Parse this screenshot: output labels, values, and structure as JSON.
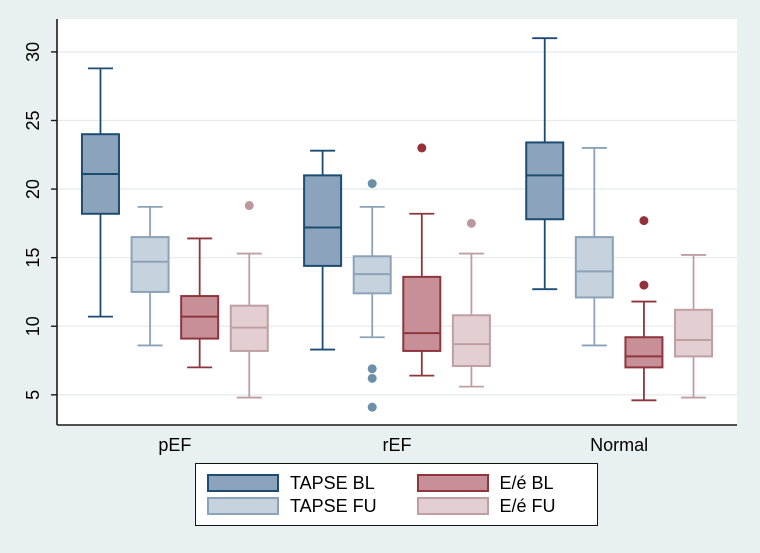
{
  "figure": {
    "background": "#e9f0f2",
    "plot_background": "#ffffff"
  },
  "chart_data": {
    "type": "box",
    "title": "",
    "xlabel": "",
    "ylabel": "",
    "groups": [
      "pEF",
      "rEF",
      "Normal"
    ],
    "yticks": [
      5,
      10,
      15,
      20,
      25,
      30
    ],
    "ylim": [
      2.8,
      32.4
    ],
    "grid": true,
    "legend_position": "bottom",
    "colors": {
      "grid": "#e7ebee",
      "axis": "#1a1a1a",
      "text": "#000000"
    },
    "series": [
      {
        "name": "TAPSE BL",
        "fill": "#8ba4bc",
        "stroke": "#1c4c72",
        "marker": "#1c4c72",
        "boxes": [
          {
            "group": "pEF",
            "low": 10.7,
            "q1": 18.2,
            "median": 21.1,
            "q3": 24.0,
            "high": 28.8,
            "outliers": []
          },
          {
            "group": "rEF",
            "low": 8.3,
            "q1": 14.4,
            "median": 17.2,
            "q3": 21.0,
            "high": 22.8,
            "outliers": []
          },
          {
            "group": "Normal",
            "low": 12.7,
            "q1": 17.8,
            "median": 21.0,
            "q3": 23.4,
            "high": 31.0,
            "outliers": []
          }
        ]
      },
      {
        "name": "TAPSE FU",
        "fill": "#c6d2de",
        "stroke": "#8ba3b9",
        "marker": "#6d90a9",
        "boxes": [
          {
            "group": "pEF",
            "low": 8.6,
            "q1": 12.5,
            "median": 14.7,
            "q3": 16.5,
            "high": 18.7,
            "outliers": []
          },
          {
            "group": "rEF",
            "low": 9.2,
            "q1": 12.4,
            "median": 13.8,
            "q3": 15.1,
            "high": 18.7,
            "outliers": [
              20.4,
              6.9,
              6.2,
              4.1
            ]
          },
          {
            "group": "Normal",
            "low": 8.6,
            "q1": 12.1,
            "median": 14.0,
            "q3": 16.5,
            "high": 23.0,
            "outliers": []
          }
        ]
      },
      {
        "name": "E/é BL",
        "fill": "#c78f97",
        "stroke": "#8f353c",
        "marker": "#96303a",
        "boxes": [
          {
            "group": "pEF",
            "low": 7.0,
            "q1": 9.1,
            "median": 10.7,
            "q3": 12.2,
            "high": 16.4,
            "outliers": []
          },
          {
            "group": "rEF",
            "low": 6.4,
            "q1": 8.2,
            "median": 9.5,
            "q3": 13.6,
            "high": 18.2,
            "outliers": [
              23.0
            ]
          },
          {
            "group": "Normal",
            "low": 4.6,
            "q1": 7.0,
            "median": 7.8,
            "q3": 9.2,
            "high": 11.8,
            "outliers": [
              17.7,
              13.0
            ]
          }
        ]
      },
      {
        "name": "E/é FU",
        "fill": "#e3cfd1",
        "stroke": "#c09fa2",
        "marker": "#bb989c",
        "boxes": [
          {
            "group": "pEF",
            "low": 4.8,
            "q1": 8.2,
            "median": 9.9,
            "q3": 11.5,
            "high": 15.3,
            "outliers": [
              18.8
            ]
          },
          {
            "group": "rEF",
            "low": 5.6,
            "q1": 7.1,
            "median": 8.7,
            "q3": 10.8,
            "high": 15.3,
            "outliers": [
              17.5
            ]
          },
          {
            "group": "Normal",
            "low": 4.8,
            "q1": 7.8,
            "median": 9.0,
            "q3": 11.2,
            "high": 15.2,
            "outliers": []
          }
        ]
      }
    ],
    "legend_entries": [
      "TAPSE BL",
      "E/é BL",
      "TAPSE FU",
      "E/é FU"
    ]
  }
}
